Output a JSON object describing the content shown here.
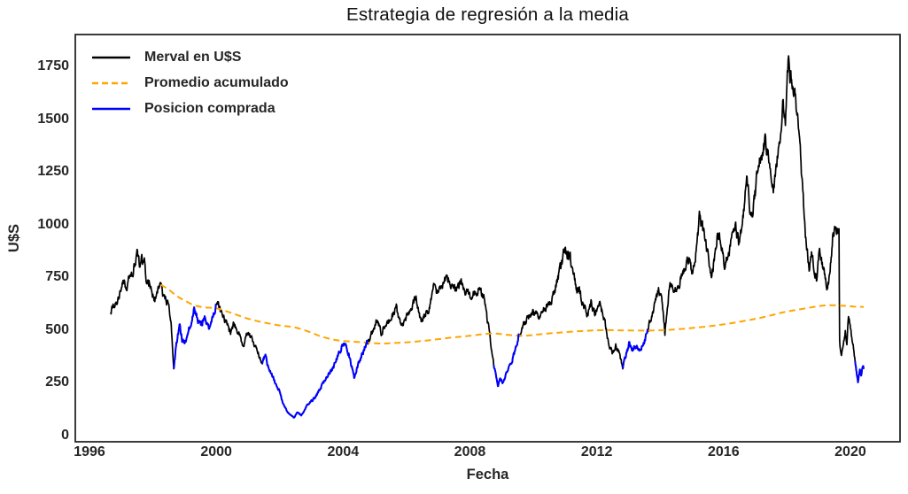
{
  "title": "Estrategia de regresión a la media",
  "axes": {
    "xlabel": "Fecha",
    "ylabel": "U$S",
    "x_ticks": [
      1996,
      2000,
      2004,
      2008,
      2012,
      2016,
      2020
    ],
    "y_ticks": [
      0,
      250,
      500,
      750,
      1000,
      1250,
      1500,
      1750
    ]
  },
  "legend": [
    {
      "label": "Merval en U$S",
      "color": "#000000",
      "dashed": false
    },
    {
      "label": "Promedio acumulado",
      "color": "#FFA500",
      "dashed": true
    },
    {
      "label": "Posicion comprada",
      "color": "#0000FF",
      "dashed": false
    }
  ],
  "chart_data": {
    "type": "line",
    "title": "Estrategia de regresión a la media",
    "xlabel": "Fecha",
    "ylabel": "U$S",
    "xlim_years": [
      1995.55,
      2021.56
    ],
    "ylim": [
      -30,
      1900
    ],
    "grid": false,
    "legend_position": "upper-left",
    "series": [
      {
        "name": "Merval en U$S",
        "color": "#000000",
        "style": "solid",
        "anchors_year_usd": [
          [
            1996.67,
            583
          ],
          [
            1996.78,
            622
          ],
          [
            1996.9,
            658
          ],
          [
            1997.0,
            692
          ],
          [
            1997.08,
            728
          ],
          [
            1997.17,
            703
          ],
          [
            1997.28,
            788
          ],
          [
            1997.36,
            762
          ],
          [
            1997.5,
            850
          ],
          [
            1997.58,
            806
          ],
          [
            1997.65,
            845
          ],
          [
            1997.73,
            828
          ],
          [
            1997.8,
            702
          ],
          [
            1997.88,
            726
          ],
          [
            1997.95,
            688
          ],
          [
            1998.05,
            641
          ],
          [
            1998.13,
            672
          ],
          [
            1998.22,
            712
          ],
          [
            1998.32,
            658
          ],
          [
            1998.42,
            641
          ],
          [
            1998.5,
            612
          ],
          [
            1998.58,
            520
          ],
          [
            1998.66,
            314
          ],
          [
            1998.73,
            422
          ],
          [
            1998.8,
            482
          ],
          [
            1998.85,
            533
          ],
          [
            1998.92,
            452
          ],
          [
            1999.0,
            440
          ],
          [
            1999.1,
            492
          ],
          [
            1999.2,
            541
          ],
          [
            1999.3,
            609
          ],
          [
            1999.4,
            556
          ],
          [
            1999.5,
            524
          ],
          [
            1999.62,
            561
          ],
          [
            1999.72,
            531
          ],
          [
            1999.8,
            512
          ],
          [
            1999.9,
            556
          ],
          [
            2000.02,
            636
          ],
          [
            2000.1,
            601
          ],
          [
            2000.2,
            558
          ],
          [
            2000.32,
            528
          ],
          [
            2000.45,
            487
          ],
          [
            2000.55,
            539
          ],
          [
            2000.65,
            501
          ],
          [
            2000.75,
            468
          ],
          [
            2000.85,
            432
          ],
          [
            2001.0,
            490
          ],
          [
            2001.1,
            458
          ],
          [
            2001.22,
            421
          ],
          [
            2001.32,
            396
          ],
          [
            2001.45,
            335
          ],
          [
            2001.55,
            391
          ],
          [
            2001.63,
            330
          ],
          [
            2001.75,
            292
          ],
          [
            2001.88,
            241
          ],
          [
            2002.0,
            210
          ],
          [
            2002.1,
            152
          ],
          [
            2002.25,
            110
          ],
          [
            2002.35,
            96
          ],
          [
            2002.45,
            84
          ],
          [
            2002.55,
            112
          ],
          [
            2002.68,
            96
          ],
          [
            2002.85,
            141
          ],
          [
            2003.0,
            162
          ],
          [
            2003.2,
            201
          ],
          [
            2003.35,
            242
          ],
          [
            2003.5,
            281
          ],
          [
            2003.65,
            312
          ],
          [
            2003.8,
            362
          ],
          [
            2003.95,
            421
          ],
          [
            2004.05,
            436
          ],
          [
            2004.18,
            382
          ],
          [
            2004.35,
            276
          ],
          [
            2004.5,
            346
          ],
          [
            2004.62,
            396
          ],
          [
            2004.75,
            446
          ],
          [
            2004.88,
            471
          ],
          [
            2005.05,
            546
          ],
          [
            2005.2,
            491
          ],
          [
            2005.35,
            521
          ],
          [
            2005.5,
            556
          ],
          [
            2005.68,
            601
          ],
          [
            2005.85,
            516
          ],
          [
            2006.0,
            561
          ],
          [
            2006.15,
            612
          ],
          [
            2006.3,
            658
          ],
          [
            2006.45,
            534
          ],
          [
            2006.6,
            572
          ],
          [
            2006.73,
            610
          ],
          [
            2006.87,
            714
          ],
          [
            2007.0,
            673
          ],
          [
            2007.1,
            701
          ],
          [
            2007.25,
            751
          ],
          [
            2007.4,
            722
          ],
          [
            2007.55,
            686
          ],
          [
            2007.7,
            731
          ],
          [
            2007.85,
            691
          ],
          [
            2008.0,
            652
          ],
          [
            2008.12,
            672
          ],
          [
            2008.3,
            692
          ],
          [
            2008.45,
            651
          ],
          [
            2008.55,
            548
          ],
          [
            2008.65,
            452
          ],
          [
            2008.75,
            340
          ],
          [
            2008.82,
            292
          ],
          [
            2008.88,
            231
          ],
          [
            2008.95,
            272
          ],
          [
            2009.05,
            247
          ],
          [
            2009.15,
            292
          ],
          [
            2009.3,
            342
          ],
          [
            2009.42,
            396
          ],
          [
            2009.55,
            477
          ],
          [
            2009.68,
            521
          ],
          [
            2009.85,
            568
          ],
          [
            2010.0,
            598
          ],
          [
            2010.15,
            561
          ],
          [
            2010.3,
            588
          ],
          [
            2010.45,
            616
          ],
          [
            2010.6,
            651
          ],
          [
            2010.74,
            722
          ],
          [
            2010.88,
            806
          ],
          [
            2011.0,
            885
          ],
          [
            2011.07,
            846
          ],
          [
            2011.15,
            868
          ],
          [
            2011.25,
            765
          ],
          [
            2011.35,
            701
          ],
          [
            2011.45,
            682
          ],
          [
            2011.58,
            612
          ],
          [
            2011.7,
            568
          ],
          [
            2011.82,
            628
          ],
          [
            2011.95,
            581
          ],
          [
            2012.1,
            618
          ],
          [
            2012.25,
            546
          ],
          [
            2012.38,
            431
          ],
          [
            2012.5,
            396
          ],
          [
            2012.6,
            426
          ],
          [
            2012.72,
            388
          ],
          [
            2012.82,
            323
          ],
          [
            2012.92,
            382
          ],
          [
            2013.02,
            431
          ],
          [
            2013.12,
            402
          ],
          [
            2013.25,
            422
          ],
          [
            2013.38,
            408
          ],
          [
            2013.5,
            438
          ],
          [
            2013.6,
            496
          ],
          [
            2013.72,
            561
          ],
          [
            2013.85,
            631
          ],
          [
            2013.95,
            688
          ],
          [
            2014.07,
            636
          ],
          [
            2014.15,
            492
          ],
          [
            2014.3,
            722
          ],
          [
            2014.45,
            673
          ],
          [
            2014.6,
            721
          ],
          [
            2014.75,
            781
          ],
          [
            2014.9,
            841
          ],
          [
            2015.0,
            763
          ],
          [
            2015.1,
            821
          ],
          [
            2015.25,
            1048
          ],
          [
            2015.38,
            951
          ],
          [
            2015.5,
            862
          ],
          [
            2015.62,
            753
          ],
          [
            2015.72,
            851
          ],
          [
            2015.82,
            971
          ],
          [
            2015.92,
            901
          ],
          [
            2016.03,
            806
          ],
          [
            2016.18,
            886
          ],
          [
            2016.37,
            985
          ],
          [
            2016.5,
            912
          ],
          [
            2016.62,
            1051
          ],
          [
            2016.73,
            1211
          ],
          [
            2016.87,
            1028
          ],
          [
            2017.0,
            1151
          ],
          [
            2017.1,
            1296
          ],
          [
            2017.3,
            1392
          ],
          [
            2017.45,
            1291
          ],
          [
            2017.57,
            1178
          ],
          [
            2017.68,
            1302
          ],
          [
            2017.78,
            1441
          ],
          [
            2017.88,
            1562
          ],
          [
            2017.95,
            1521
          ],
          [
            2018.0,
            1662
          ],
          [
            2018.05,
            1818
          ],
          [
            2018.12,
            1682
          ],
          [
            2018.2,
            1646
          ],
          [
            2018.28,
            1591
          ],
          [
            2018.35,
            1477
          ],
          [
            2018.42,
            1351
          ],
          [
            2018.5,
            1152
          ],
          [
            2018.57,
            981
          ],
          [
            2018.62,
            881
          ],
          [
            2018.7,
            796
          ],
          [
            2018.8,
            861
          ],
          [
            2018.93,
            736
          ],
          [
            2019.03,
            877
          ],
          [
            2019.17,
            778
          ],
          [
            2019.27,
            694
          ],
          [
            2019.35,
            765
          ],
          [
            2019.44,
            931
          ],
          [
            2019.53,
            1007
          ],
          [
            2019.6,
            966
          ],
          [
            2019.64,
            958
          ],
          [
            2019.66,
            432
          ],
          [
            2019.72,
            373
          ],
          [
            2019.84,
            499
          ],
          [
            2019.89,
            441
          ],
          [
            2019.94,
            565
          ],
          [
            2020.03,
            483
          ],
          [
            2020.1,
            416
          ],
          [
            2020.16,
            336
          ],
          [
            2020.24,
            248
          ],
          [
            2020.3,
            316
          ],
          [
            2020.34,
            281
          ],
          [
            2020.39,
            331
          ],
          [
            2020.42,
            316
          ]
        ]
      },
      {
        "name": "Promedio acumulado",
        "color": "#FFA500",
        "style": "dashed",
        "anchors_year_usd": [
          [
            1998.25,
            715
          ],
          [
            1998.5,
            692
          ],
          [
            1998.75,
            662
          ],
          [
            1999.0,
            640
          ],
          [
            1999.3,
            618
          ],
          [
            1999.6,
            608
          ],
          [
            1999.9,
            605
          ],
          [
            2000.1,
            600
          ],
          [
            2000.5,
            580
          ],
          [
            2001.0,
            554
          ],
          [
            2001.5,
            536
          ],
          [
            2002.0,
            522
          ],
          [
            2002.5,
            512
          ],
          [
            2003.0,
            488
          ],
          [
            2003.3,
            470
          ],
          [
            2003.8,
            452
          ],
          [
            2004.35,
            445
          ],
          [
            2004.8,
            440
          ],
          [
            2005.2,
            436
          ],
          [
            2005.5,
            438
          ],
          [
            2006.0,
            442
          ],
          [
            2006.6,
            450
          ],
          [
            2007.4,
            464
          ],
          [
            2008.0,
            473
          ],
          [
            2008.7,
            484
          ],
          [
            2009.2,
            477
          ],
          [
            2009.7,
            473
          ],
          [
            2010.2,
            480
          ],
          [
            2010.8,
            488
          ],
          [
            2011.5,
            495
          ],
          [
            2012.2,
            500
          ],
          [
            2013.0,
            498
          ],
          [
            2014.0,
            499
          ],
          [
            2015.0,
            510
          ],
          [
            2016.0,
            527
          ],
          [
            2016.9,
            550
          ],
          [
            2017.5,
            570
          ],
          [
            2017.9,
            585
          ],
          [
            2018.5,
            601
          ],
          [
            2019.2,
            617
          ],
          [
            2019.7,
            616
          ],
          [
            2020.1,
            612
          ],
          [
            2020.42,
            610
          ]
        ]
      },
      {
        "name": "Posicion comprada",
        "color": "#0000FF",
        "style": "solid",
        "note": "overlay of Merval series while position is long",
        "long_ranges_years": [
          [
            1998.66,
            2000.0
          ],
          [
            2001.45,
            2004.78
          ],
          [
            2008.75,
            2009.56
          ],
          [
            2012.81,
            2013.61
          ],
          [
            2020.14,
            2020.42
          ]
        ]
      }
    ]
  }
}
